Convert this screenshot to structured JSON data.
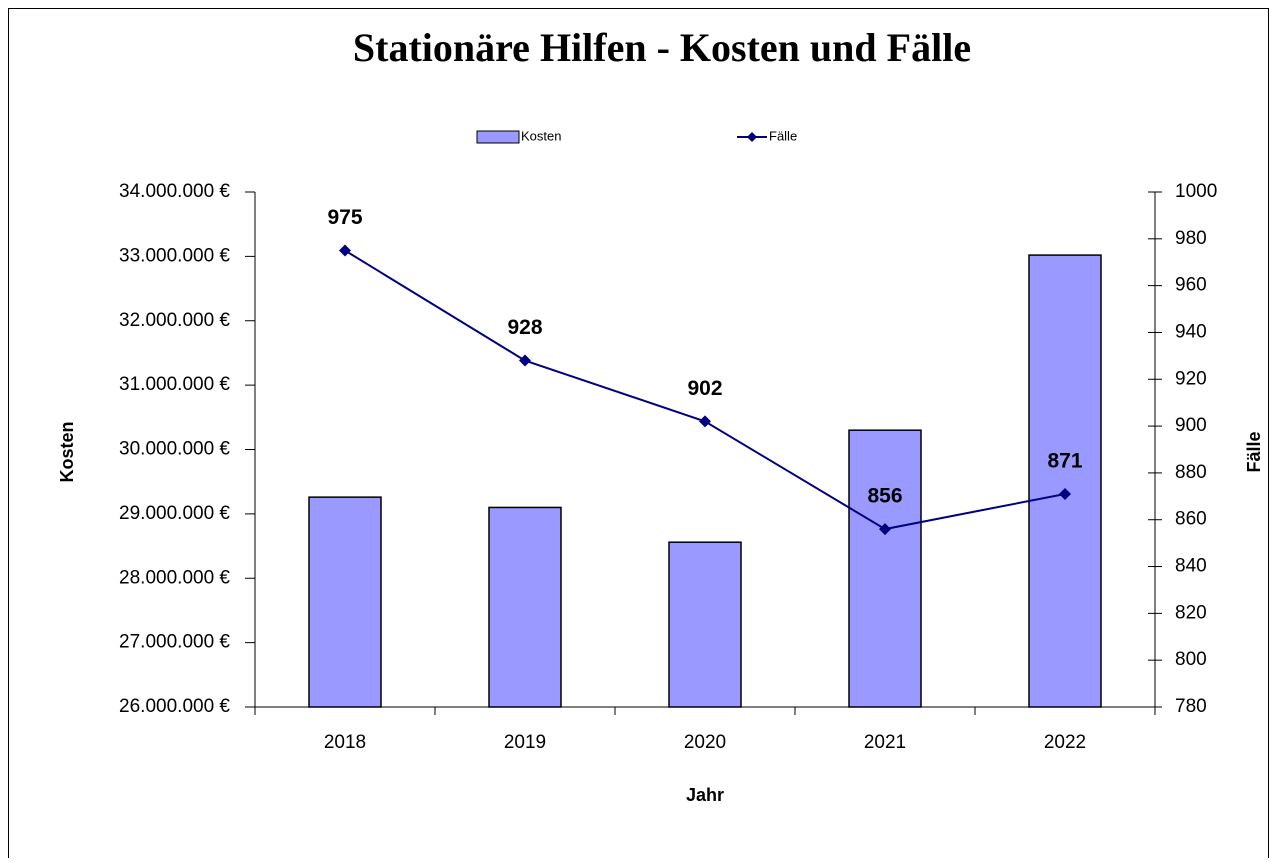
{
  "chart_data": {
    "type": "bar-line",
    "title": "Stationäre Hilfen - Kosten und Fälle",
    "categories": [
      "2018",
      "2019",
      "2020",
      "2021",
      "2022"
    ],
    "series": [
      {
        "name": "Kosten",
        "type": "bar",
        "axis": "y",
        "color": "#9999ff",
        "values": [
          29260000,
          29100000,
          28560000,
          30300000,
          33020000
        ]
      },
      {
        "name": "Fälle",
        "type": "line",
        "axis": "y2",
        "color": "#000080",
        "values": [
          975,
          928,
          902,
          856,
          871
        ]
      }
    ],
    "xlabel": "Jahr",
    "ylabel": "Kosten",
    "y2label": "Fälle",
    "ylim": [
      26000000,
      34000000
    ],
    "yticks": [
      {
        "value": 26000000,
        "label": "26.000.000 €"
      },
      {
        "value": 27000000,
        "label": "27.000.000 €"
      },
      {
        "value": 28000000,
        "label": "28.000.000 €"
      },
      {
        "value": 29000000,
        "label": "29.000.000 €"
      },
      {
        "value": 30000000,
        "label": "30.000.000 €"
      },
      {
        "value": 31000000,
        "label": "31.000.000 €"
      },
      {
        "value": 32000000,
        "label": "32.000.000 €"
      },
      {
        "value": 33000000,
        "label": "33.000.000 €"
      },
      {
        "value": 34000000,
        "label": "34.000.000 €"
      }
    ],
    "y2lim": [
      780,
      1000
    ],
    "y2ticks": [
      780,
      800,
      820,
      840,
      860,
      880,
      900,
      920,
      940,
      960,
      980,
      1000
    ],
    "legend": "top"
  }
}
